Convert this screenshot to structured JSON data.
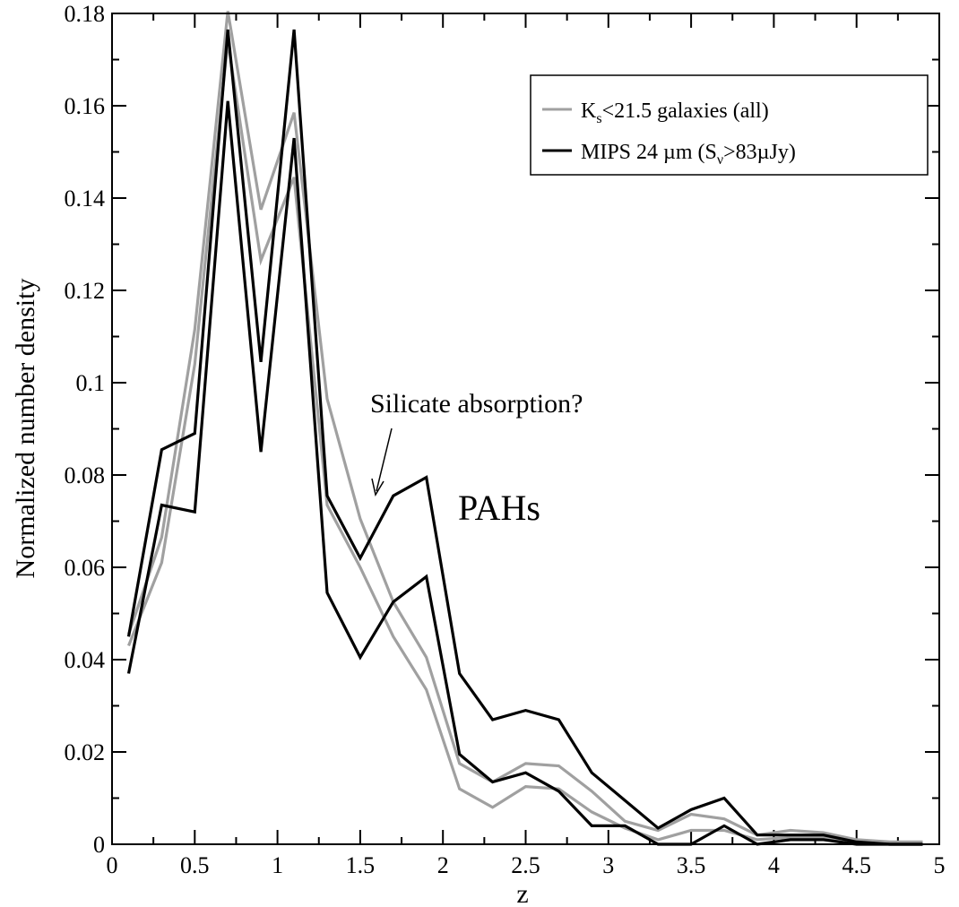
{
  "chart_data": {
    "type": "line",
    "xlabel": "z",
    "ylabel": "Normalized number density",
    "xlim": [
      0,
      5
    ],
    "ylim": [
      0,
      0.18
    ],
    "x_ticks": [
      {
        "v": 0,
        "label": "0"
      },
      {
        "v": 0.5,
        "label": "0.5"
      },
      {
        "v": 1,
        "label": "1"
      },
      {
        "v": 1.5,
        "label": "1.5"
      },
      {
        "v": 2,
        "label": "2"
      },
      {
        "v": 2.5,
        "label": "2.5"
      },
      {
        "v": 3,
        "label": "3"
      },
      {
        "v": 3.5,
        "label": "3.5"
      },
      {
        "v": 4,
        "label": "4"
      },
      {
        "v": 4.5,
        "label": "4.5"
      },
      {
        "v": 5,
        "label": "5"
      }
    ],
    "y_ticks": [
      {
        "v": 0,
        "label": "0"
      },
      {
        "v": 0.02,
        "label": "0.02"
      },
      {
        "v": 0.04,
        "label": "0.04"
      },
      {
        "v": 0.06,
        "label": "0.06"
      },
      {
        "v": 0.08,
        "label": "0.08"
      },
      {
        "v": 0.1,
        "label": "0.1"
      },
      {
        "v": 0.12,
        "label": "0.12"
      },
      {
        "v": 0.14,
        "label": "0.14"
      },
      {
        "v": 0.16,
        "label": "0.16"
      },
      {
        "v": 0.18,
        "label": "0.18"
      }
    ],
    "legend": {
      "placement": "top-right",
      "entries": [
        {
          "color": "#a0a0a0",
          "main": "K",
          "sub": "s",
          "rest": "<21.5 galaxies (all)"
        },
        {
          "color": "#000000",
          "main": "MIPS 24 µm (S",
          "sub": "ν",
          "rest": ">83µJy)"
        }
      ]
    },
    "annotations": {
      "silicate": "Silicate absorption?",
      "pahs": "PAHs"
    },
    "x": [
      0.1,
      0.3,
      0.5,
      0.7,
      0.9,
      1.1,
      1.3,
      1.5,
      1.7,
      1.9,
      2.1,
      2.3,
      2.5,
      2.7,
      2.9,
      3.1,
      3.3,
      3.5,
      3.7,
      3.9,
      4.1,
      4.3,
      4.5,
      4.7,
      4.9
    ],
    "series": [
      {
        "color": "#a0a0a0",
        "values": [
          0.0455,
          0.0665,
          0.1115,
          0.1805,
          0.1375,
          0.1585,
          0.0965,
          0.0705,
          0.0525,
          0.0405,
          0.0175,
          0.0135,
          0.0175,
          0.017,
          0.0115,
          0.005,
          0.003,
          0.0065,
          0.0055,
          0.002,
          0.003,
          0.0025,
          0.001,
          0.0005,
          0.0005
        ]
      },
      {
        "color": "#a0a0a0",
        "values": [
          0.043,
          0.061,
          0.104,
          0.174,
          0.1265,
          0.1445,
          0.0735,
          0.06,
          0.045,
          0.0335,
          0.012,
          0.008,
          0.0125,
          0.012,
          0.007,
          0.0035,
          0.001,
          0.003,
          0.003,
          0.001,
          0.0015,
          0.0015,
          0.0005,
          0.0,
          0.0
        ]
      },
      {
        "color": "#000000",
        "values": [
          0.045,
          0.0855,
          0.089,
          0.1765,
          0.1045,
          0.1765,
          0.0755,
          0.062,
          0.0755,
          0.0795,
          0.037,
          0.027,
          0.029,
          0.027,
          0.0155,
          0.0095,
          0.0035,
          0.0075,
          0.01,
          0.002,
          0.002,
          0.002,
          0.0005,
          0.0,
          0.0
        ]
      },
      {
        "color": "#000000",
        "values": [
          0.037,
          0.0735,
          0.072,
          0.161,
          0.085,
          0.153,
          0.0545,
          0.0405,
          0.0525,
          0.058,
          0.0195,
          0.0135,
          0.0155,
          0.0115,
          0.004,
          0.004,
          0.0,
          0.0,
          0.004,
          0.0,
          0.001,
          0.001,
          0.0,
          0.0,
          0.0
        ]
      }
    ]
  }
}
